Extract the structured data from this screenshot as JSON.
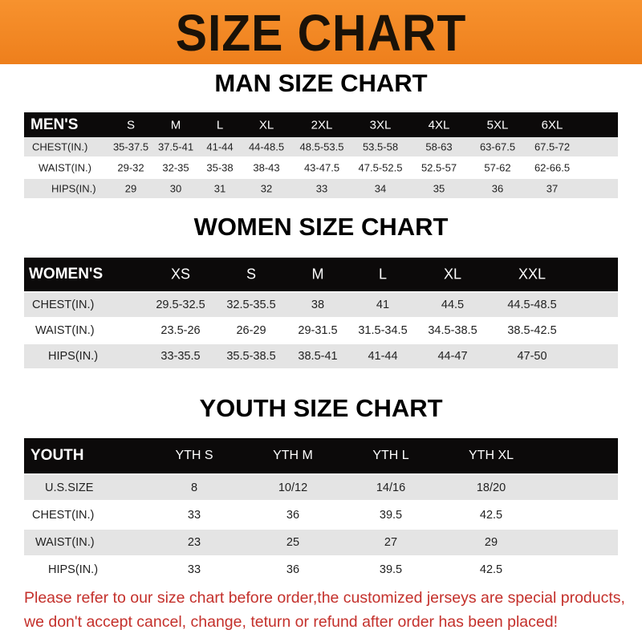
{
  "title": "SIZE CHART",
  "men": {
    "title": "MAN SIZE CHART",
    "header": [
      "MEN'S",
      "S",
      "M",
      "L",
      "XL",
      "2XL",
      "3XL",
      "4XL",
      "5XL",
      "6XL"
    ],
    "rows": [
      [
        "CHEST(IN.)",
        "35-37.5",
        "37.5-41",
        "41-44",
        "44-48.5",
        "48.5-53.5",
        "53.5-58",
        "58-63",
        "63-67.5",
        "67.5-72"
      ],
      [
        "WAIST(IN.)",
        "29-32",
        "32-35",
        "35-38",
        "38-43",
        "43-47.5",
        "47.5-52.5",
        "52.5-57",
        "57-62",
        "62-66.5"
      ],
      [
        "HIPS(IN.)",
        "29",
        "30",
        "31",
        "32",
        "33",
        "34",
        "35",
        "36",
        "37"
      ]
    ]
  },
  "women": {
    "title": "WOMEN SIZE CHART",
    "header": [
      "WOMEN'S",
      "XS",
      "S",
      "M",
      "L",
      "XL",
      "XXL"
    ],
    "rows": [
      [
        "CHEST(IN.)",
        "29.5-32.5",
        "32.5-35.5",
        "38",
        "41",
        "44.5",
        "44.5-48.5"
      ],
      [
        "WAIST(IN.)",
        "23.5-26",
        "26-29",
        "29-31.5",
        "31.5-34.5",
        "34.5-38.5",
        "38.5-42.5"
      ],
      [
        "HIPS(IN.)",
        "33-35.5",
        "35.5-38.5",
        "38.5-41",
        "41-44",
        "44-47",
        "47-50"
      ]
    ]
  },
  "youth": {
    "title": "YOUTH SIZE CHART",
    "header": [
      "YOUTH",
      "YTH S",
      "YTH M",
      "YTH L",
      "YTH XL"
    ],
    "rows": [
      [
        "U.S.SIZE",
        "8",
        "10/12",
        "14/16",
        "18/20"
      ],
      [
        "CHEST(IN.)",
        "33",
        "36",
        "39.5",
        "42.5"
      ],
      [
        "WAIST(IN.)",
        "23",
        "25",
        "27",
        "29"
      ],
      [
        "HIPS(IN.)",
        "33",
        "36",
        "39.5",
        "42.5"
      ]
    ]
  },
  "note": {
    "line1": "Please refer to our size chart before order,the customized jerseys are special products,",
    "line2": "we don't accept cancel, change, teturn or refund after order has been placed!"
  },
  "colors": {
    "banner": "#f08a28",
    "header_row": "#0c0a0a",
    "note": "#c4302b"
  }
}
